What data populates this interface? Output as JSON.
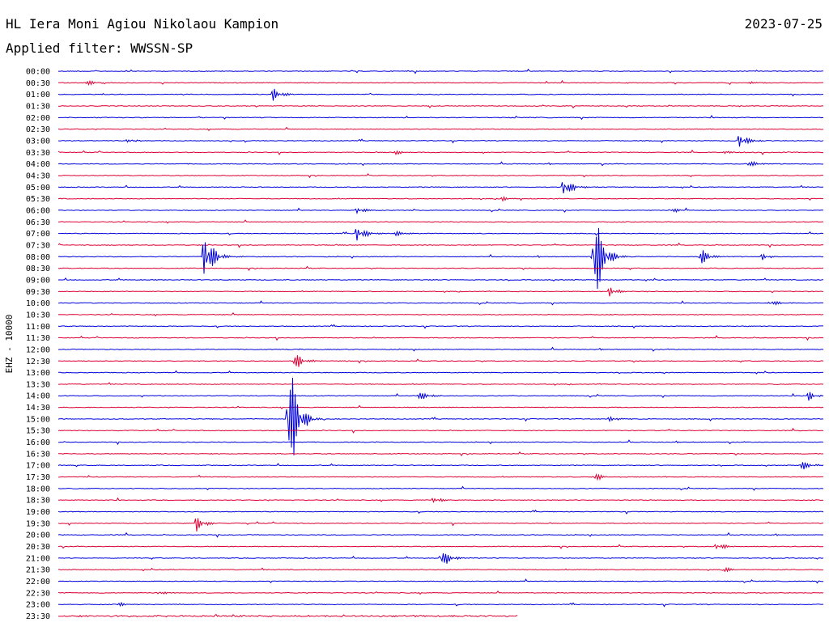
{
  "header": {
    "station": "HL Iera Moni Agiou Nikolaou Kampion",
    "date": "2023-07-25",
    "filter": "Applied filter: WWSSN-SP"
  },
  "chart_data": {
    "type": "line",
    "title": "HL Iera Moni Agiou Nikolaou Kampion",
    "subtitle": "Applied filter: WWSSN-SP",
    "ylabel": "EHZ - 10000",
    "xlabel": "",
    "trace_minutes": 30,
    "row_labels": [
      "00:00",
      "00:30",
      "01:00",
      "01:30",
      "02:00",
      "02:30",
      "03:00",
      "03:30",
      "04:00",
      "04:30",
      "05:00",
      "05:30",
      "06:00",
      "06:30",
      "07:00",
      "07:30",
      "08:00",
      "08:30",
      "09:00",
      "09:30",
      "10:00",
      "10:30",
      "11:00",
      "11:30",
      "12:00",
      "12:30",
      "13:00",
      "13:30",
      "14:00",
      "14:30",
      "15:00",
      "15:30",
      "16:00",
      "16:30",
      "17:00",
      "17:30",
      "18:00",
      "18:30",
      "19:00",
      "19:30",
      "20:00",
      "20:30",
      "21:00",
      "21:30",
      "22:00",
      "22:30",
      "23:00",
      "23:30"
    ],
    "colors": [
      "#0000dd",
      "#dd0033"
    ],
    "last_row_fraction": 0.6,
    "events": [
      {
        "row": 1,
        "t": 0.035,
        "amp": 5
      },
      {
        "row": 1,
        "t": 0.9,
        "amp": 3
      },
      {
        "row": 2,
        "t": 0.28,
        "amp": 9
      },
      {
        "row": 6,
        "t": 0.09,
        "amp": 3
      },
      {
        "row": 6,
        "t": 0.89,
        "amp": 12
      },
      {
        "row": 7,
        "t": 0.44,
        "amp": 4
      },
      {
        "row": 7,
        "t": 0.87,
        "amp": 3
      },
      {
        "row": 8,
        "t": 0.9,
        "amp": 6
      },
      {
        "row": 10,
        "t": 0.66,
        "amp": 16
      },
      {
        "row": 11,
        "t": 0.58,
        "amp": 4
      },
      {
        "row": 12,
        "t": 0.39,
        "amp": 6
      },
      {
        "row": 12,
        "t": 0.8,
        "amp": 4
      },
      {
        "row": 14,
        "t": 0.39,
        "amp": 14
      },
      {
        "row": 14,
        "t": 0.44,
        "amp": 5
      },
      {
        "row": 16,
        "t": 0.19,
        "amp": 45
      },
      {
        "row": 16,
        "t": 0.7,
        "amp": 90
      },
      {
        "row": 16,
        "t": 0.84,
        "amp": 12
      },
      {
        "row": 16,
        "t": 0.92,
        "amp": 5
      },
      {
        "row": 19,
        "t": 0.72,
        "amp": 8
      },
      {
        "row": 20,
        "t": 0.93,
        "amp": 5
      },
      {
        "row": 25,
        "t": 0.31,
        "amp": 12
      },
      {
        "row": 28,
        "t": 0.47,
        "amp": 9
      },
      {
        "row": 28,
        "t": 0.98,
        "amp": 7
      },
      {
        "row": 30,
        "t": 0.3,
        "amp": 115
      },
      {
        "row": 30,
        "t": 0.72,
        "amp": 4
      },
      {
        "row": 34,
        "t": 0.97,
        "amp": 10
      },
      {
        "row": 35,
        "t": 0.7,
        "amp": 7
      },
      {
        "row": 37,
        "t": 0.49,
        "amp": 5
      },
      {
        "row": 39,
        "t": 0.18,
        "amp": 12
      },
      {
        "row": 41,
        "t": 0.86,
        "amp": 7
      },
      {
        "row": 42,
        "t": 0.5,
        "amp": 16
      },
      {
        "row": 43,
        "t": 0.87,
        "amp": 4
      },
      {
        "row": 45,
        "t": 0.13,
        "amp": 3
      },
      {
        "row": 46,
        "t": 0.08,
        "amp": 3
      }
    ]
  }
}
